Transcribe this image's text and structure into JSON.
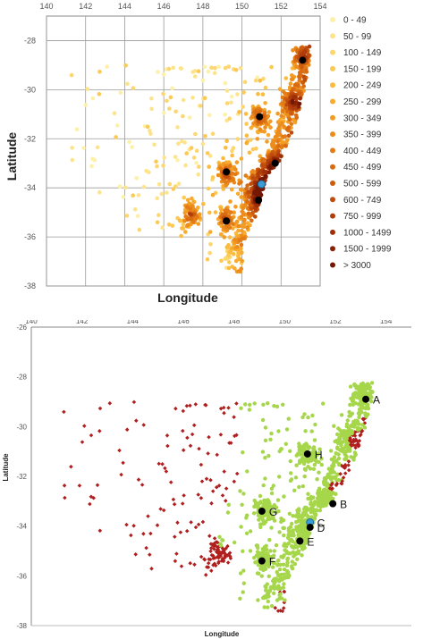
{
  "chart_data": [
    {
      "type": "scatter",
      "xlabel": "Longitude",
      "ylabel": "Latitude",
      "xlim": [
        140,
        154
      ],
      "ylim": [
        -38,
        -27
      ],
      "x_ticks": [
        "140",
        "142",
        "144",
        "146",
        "148",
        "150",
        "152",
        "154"
      ],
      "y_ticks": [
        "-28",
        "-30",
        "-32",
        "-34",
        "-36",
        "-38"
      ],
      "grid": true,
      "legend_position": "right",
      "legend": [
        {
          "label": "0 - 49",
          "color": "#fdf0a8"
        },
        {
          "label": "50 - 99",
          "color": "#fde48c"
        },
        {
          "label": "100 - 149",
          "color": "#fdd66f"
        },
        {
          "label": "150 - 199",
          "color": "#fcc955"
        },
        {
          "label": "200 - 249",
          "color": "#fbbb3f"
        },
        {
          "label": "250 - 299",
          "color": "#f8ab2f"
        },
        {
          "label": "300 - 349",
          "color": "#f39c24"
        },
        {
          "label": "350 - 399",
          "color": "#ec8c1c"
        },
        {
          "label": "400 - 449",
          "color": "#e37c16"
        },
        {
          "label": "450 - 499",
          "color": "#d96c12"
        },
        {
          "label": "500 - 599",
          "color": "#cd5c0f"
        },
        {
          "label": "600 - 749",
          "color": "#bf4c0c"
        },
        {
          "label": "750 - 999",
          "color": "#b03d0a"
        },
        {
          "label": "1000 - 1499",
          "color": "#9e2f08"
        },
        {
          "label": "1500 - 1999",
          "color": "#8a2306"
        },
        {
          "label": "> 3000",
          "color": "#741804"
        }
      ],
      "sites": [
        {
          "lon": 153.1,
          "lat": -28.8,
          "color": "#000000"
        },
        {
          "lon": 150.9,
          "lat": -31.1,
          "color": "#000000"
        },
        {
          "lon": 149.2,
          "lat": -33.35,
          "color": "#000000"
        },
        {
          "lon": 151.7,
          "lat": -33.0,
          "color": "#000000"
        },
        {
          "lon": 151.0,
          "lat": -33.85,
          "color": "#3a9bd5"
        },
        {
          "lon": 150.85,
          "lat": -34.5,
          "color": "#000000"
        },
        {
          "lon": 149.2,
          "lat": -35.35,
          "color": "#000000"
        }
      ]
    },
    {
      "type": "scatter",
      "xlabel": "Longitude",
      "ylabel": "Latitude",
      "xlim": [
        140,
        155
      ],
      "ylim": [
        -38,
        -26
      ],
      "x_ticks": [
        "140",
        "142",
        "144",
        "146",
        "148",
        "150",
        "152",
        "154"
      ],
      "y_ticks": [
        "-26",
        "-28",
        "-30",
        "-32",
        "-34",
        "-36",
        "-38"
      ],
      "grid": false,
      "series_colors": {
        "inside": "#a6d64a",
        "outside": "#b01e1e"
      },
      "sites": [
        {
          "label": "A",
          "lon": 153.2,
          "lat": -28.9,
          "color": "#000000",
          "label_color": "#111111"
        },
        {
          "label": "B",
          "lon": 151.9,
          "lat": -33.1,
          "color": "#000000",
          "label_color": "#111111"
        },
        {
          "label": "C",
          "lon": 151.0,
          "lat": -33.85,
          "color": "#3a9bd5",
          "label_color": "#2aa5b5"
        },
        {
          "label": "D",
          "lon": 151.0,
          "lat": -34.05,
          "color": "#000000",
          "label_color": "#111111"
        },
        {
          "label": "E",
          "lon": 150.6,
          "lat": -34.6,
          "color": "#000000",
          "label_color": "#111111"
        },
        {
          "label": "F",
          "lon": 149.1,
          "lat": -35.4,
          "color": "#000000",
          "label_color": "#111111"
        },
        {
          "label": "G",
          "lon": 149.1,
          "lat": -33.4,
          "color": "#000000",
          "label_color": "#111111"
        },
        {
          "label": "H",
          "lon": 150.9,
          "lat": -31.1,
          "color": "#000000",
          "label_color": "#111111"
        }
      ]
    }
  ]
}
